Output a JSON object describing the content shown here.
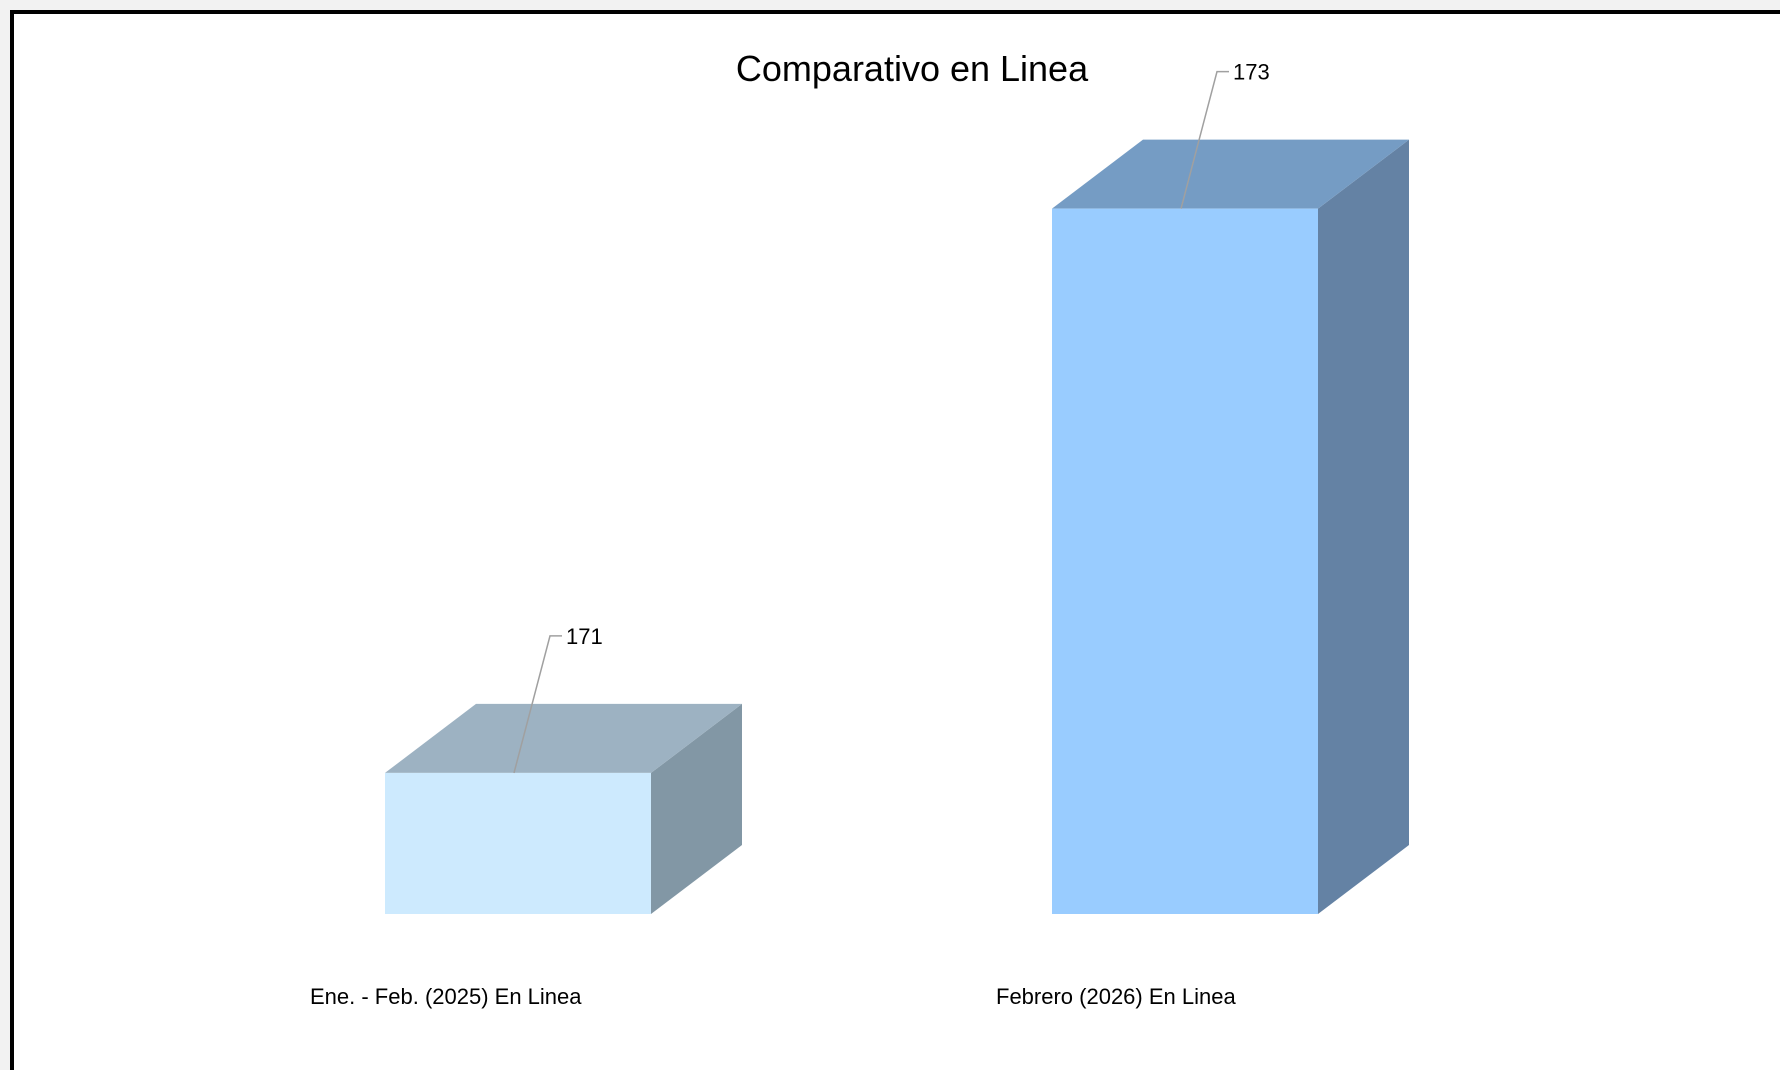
{
  "chart_data": {
    "type": "bar",
    "style": "3d-column",
    "title": "Comparativo en Linea",
    "categories": [
      "Ene. - Feb. (2025) En Linea",
      "Febrero (2026) En Linea"
    ],
    "values": [
      171,
      173
    ],
    "value_labels": [
      "171",
      "173"
    ],
    "ylim": [
      170.5,
      173.3
    ],
    "grid": false,
    "legend": "none",
    "colors": {
      "bars": [
        {
          "front": "#cdeafe",
          "top": "#9db2c2",
          "side": "#8297a5"
        },
        {
          "front": "#99ccff",
          "top": "#759cc4",
          "side": "#6482a4"
        }
      ],
      "leader_line": "#a0a0a0"
    }
  }
}
